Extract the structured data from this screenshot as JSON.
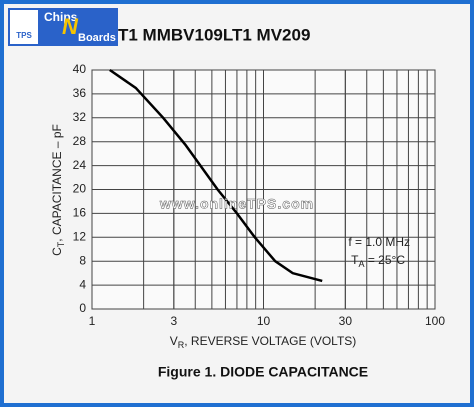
{
  "logo": {
    "top": "Chips",
    "middle": "N",
    "bottom": "Boards",
    "badge": "TPS"
  },
  "watermark": "www.onlineTPS.com",
  "chart_data": {
    "type": "line",
    "title": "T1 MMBV109LT1 MV209",
    "caption": "Figure 1. DIODE CAPACITANCE",
    "ylabel": {
      "main": "C",
      "sub": "T",
      "rest": ", CAPACITANCE – pF"
    },
    "xlabel": {
      "main": "V",
      "sub": "R",
      "rest": ", REVERSE VOLTAGE (VOLTS)"
    },
    "annotations": [
      {
        "main": "f = 1.0 MHz"
      },
      {
        "main": "T",
        "sub": "A",
        "rest": " = 25°C"
      }
    ],
    "x": [
      1.27,
      1.8,
      2.6,
      3.5,
      5.4,
      7,
      8.9,
      11.7,
      14.8,
      22
    ],
    "series": [
      {
        "color": "#000000",
        "values": [
          40,
          37,
          32,
          27.5,
          20,
          16,
          12,
          8,
          6,
          4.7
        ]
      }
    ],
    "xlim": [
      1,
      100
    ],
    "xticks": [
      1,
      3,
      10,
      30,
      100
    ],
    "xscale": "log",
    "ylim": [
      0,
      40
    ],
    "yticks": [
      0,
      4,
      8,
      12,
      16,
      20,
      24,
      28,
      32,
      36,
      40
    ],
    "grid": true
  }
}
